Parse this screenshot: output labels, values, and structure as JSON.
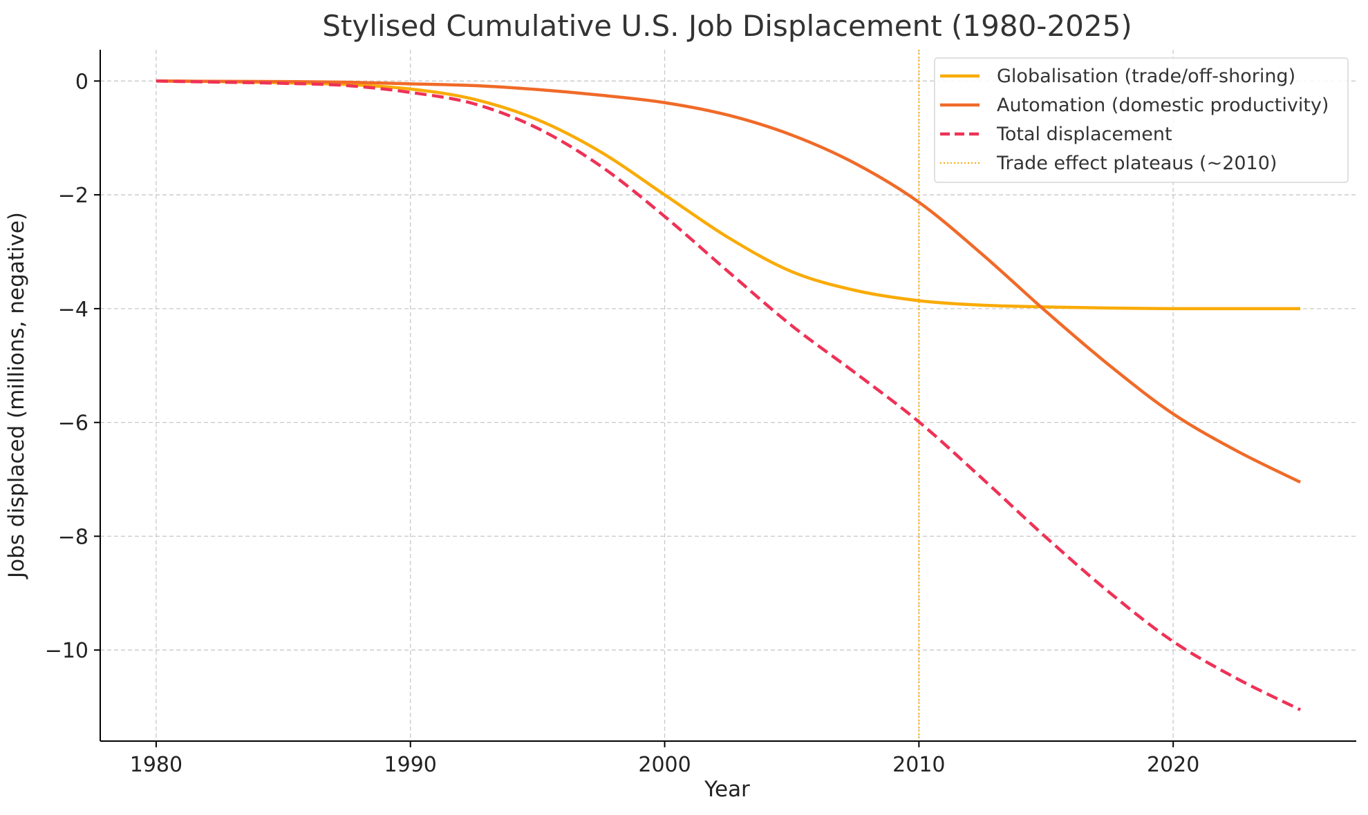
{
  "chart_data": {
    "type": "line",
    "title": "Stylised Cumulative U.S. Job Displacement (1980-2025)",
    "xlabel": "Year",
    "ylabel": "Jobs displaced (millions, negative)",
    "xlim": [
      1977.8,
      2027.2
    ],
    "ylim": [
      -11.6,
      0.55
    ],
    "xticks": [
      1980,
      1990,
      2000,
      2010,
      2020
    ],
    "yticks": [
      0,
      -2,
      -4,
      -6,
      -8,
      -10
    ],
    "ytick_labels": [
      "0",
      "−2",
      "−4",
      "−6",
      "−8",
      "−10"
    ],
    "grid": true,
    "legend_position": "top-right",
    "x": [
      1980,
      1982.5,
      1985,
      1987.5,
      1990,
      1992.5,
      1995,
      1997.5,
      2000,
      2002.5,
      2005,
      2007.5,
      2010,
      2012.5,
      2015,
      2017.5,
      2020,
      2022.5,
      2025
    ],
    "series": [
      {
        "name": "Globalisation (trade/off-shoring)",
        "color": "#f9ab07",
        "style": "solid",
        "values": [
          0,
          -0.01,
          -0.03,
          -0.06,
          -0.14,
          -0.32,
          -0.68,
          -1.25,
          -2.0,
          -2.75,
          -3.35,
          -3.68,
          -3.86,
          -3.94,
          -3.97,
          -3.99,
          -4.0,
          -4.0,
          -4.0
        ]
      },
      {
        "name": "Automation (domestic productivity)",
        "color": "#f06a28",
        "style": "solid",
        "values": [
          0,
          -0.005,
          -0.01,
          -0.02,
          -0.05,
          -0.08,
          -0.15,
          -0.25,
          -0.38,
          -0.6,
          -0.95,
          -1.45,
          -2.13,
          -3.05,
          -4.05,
          -5.0,
          -5.85,
          -6.5,
          -7.05
        ]
      },
      {
        "name": "Total displacement",
        "color": "#ee3256",
        "style": "dashed",
        "values": [
          0,
          -0.02,
          -0.04,
          -0.08,
          -0.2,
          -0.4,
          -0.83,
          -1.5,
          -2.38,
          -3.35,
          -4.3,
          -5.13,
          -5.99,
          -6.99,
          -8.02,
          -8.99,
          -9.85,
          -10.5,
          -11.05
        ]
      }
    ],
    "annotations": [
      {
        "name": "Trade effect plateaus (~2010)",
        "type": "vline",
        "x": 2010,
        "color": "#f9ab07",
        "style": "dotted"
      }
    ]
  }
}
